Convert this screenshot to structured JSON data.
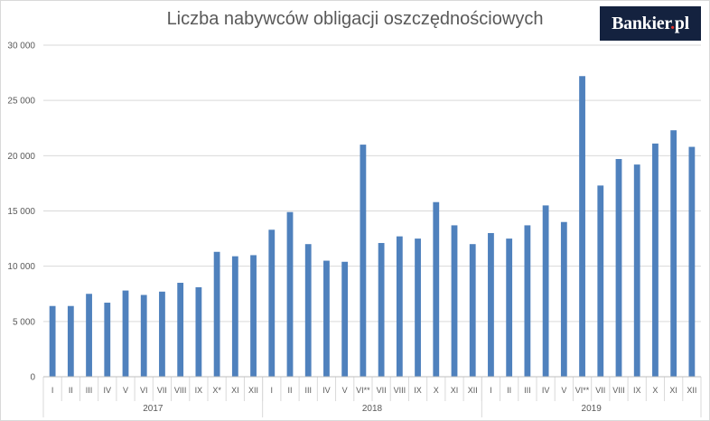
{
  "chart_data": {
    "type": "bar",
    "title": "Liczba nabywców obligacji oszczędnościowych",
    "ylim": [
      0,
      30000
    ],
    "yticks": [
      "0",
      "5 000",
      "10 000",
      "15 000",
      "20 000",
      "25 000",
      "30 000"
    ],
    "ytick_values": [
      0,
      5000,
      10000,
      15000,
      20000,
      25000,
      30000
    ],
    "grid": true,
    "legend": "none",
    "bar_color": "#4f81bd",
    "categories": [
      "I",
      "II",
      "III",
      "IV",
      "V",
      "VI",
      "VII",
      "VIII",
      "IX",
      "X*",
      "XI",
      "XII",
      "I",
      "II",
      "III",
      "IV",
      "V",
      "VI**",
      "VII",
      "VIII",
      "IX",
      "X",
      "XI",
      "XII",
      "I",
      "II",
      "III",
      "IV",
      "V",
      "VI**",
      "VII",
      "VIII",
      "IX",
      "X",
      "XI",
      "XII"
    ],
    "groups": [
      {
        "label": "2017",
        "count": 12
      },
      {
        "label": "2018",
        "count": 12
      },
      {
        "label": "2019",
        "count": 12
      }
    ],
    "values": [
      6400,
      6400,
      7500,
      6700,
      7800,
      7400,
      7700,
      8500,
      8100,
      11300,
      10900,
      11000,
      13300,
      14900,
      12000,
      10500,
      10400,
      21000,
      12100,
      12700,
      12500,
      15800,
      13700,
      12000,
      13000,
      12500,
      13700,
      15500,
      14000,
      27200,
      17300,
      19700,
      19200,
      21100,
      22300,
      20800
    ]
  },
  "brand": {
    "name": "Bankier",
    "dot": ".",
    "suffix": "pl"
  }
}
